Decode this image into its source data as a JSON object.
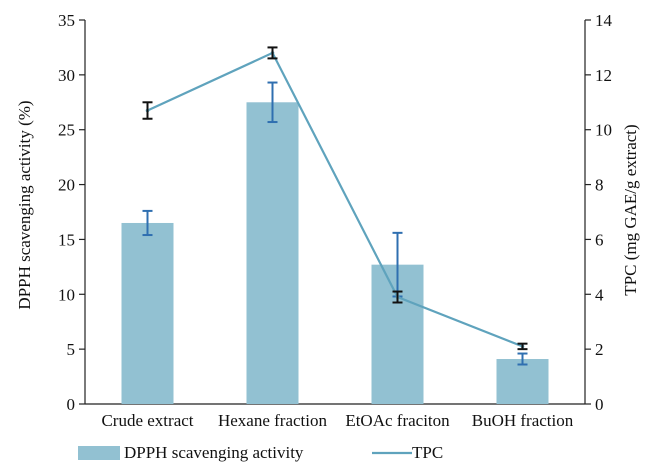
{
  "chart_data": {
    "type": "bar",
    "categories": [
      "Crude extract",
      "Hexane fraction",
      "EtOAc fraciton",
      "BuOH fraction"
    ],
    "series": [
      {
        "name": "DPPH scavenging activity",
        "kind": "bar",
        "axis": "left",
        "values": [
          16.5,
          27.5,
          12.7,
          4.1
        ],
        "errors": [
          1.1,
          1.8,
          2.9,
          0.5
        ],
        "color": "#92c1d2",
        "error_color": "#2f6fb0"
      },
      {
        "name": "TPC",
        "kind": "line",
        "axis": "right",
        "values": [
          10.7,
          12.8,
          3.9,
          2.1
        ],
        "errors": [
          0.3,
          0.2,
          0.2,
          0.1
        ],
        "color": "#5fa3bd",
        "error_color": "#111111"
      }
    ],
    "ylabel": "DPPH scavenging activity (%)",
    "ylabel_right": "TPC (mg GAE/g extract)",
    "ylim": [
      0,
      35
    ],
    "ylim_right": [
      0,
      14
    ],
    "yticks": [
      0,
      5,
      10,
      15,
      20,
      25,
      30,
      35
    ],
    "yticks_right": [
      0,
      2,
      4,
      6,
      8,
      10,
      12,
      14
    ],
    "grid": false,
    "legend_position": "bottom"
  }
}
